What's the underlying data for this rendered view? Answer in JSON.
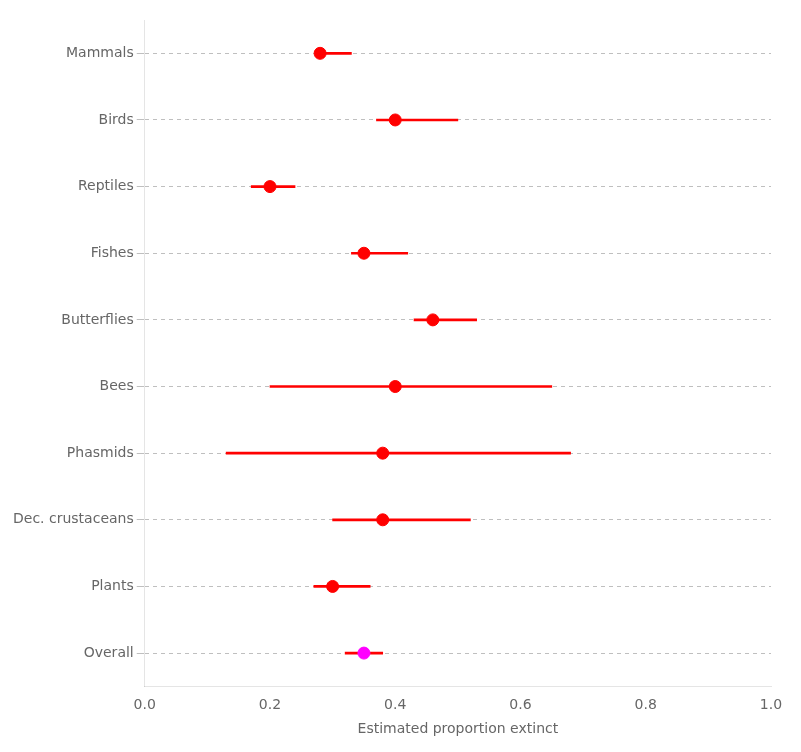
{
  "chart_data": {
    "type": "errorbar",
    "categories": [
      "Mammals",
      "Birds",
      "Reptiles",
      "Fishes",
      "Butterflies",
      "Bees",
      "Phasmids",
      "Dec. crustaceans",
      "Plants",
      "Overall"
    ],
    "values": [
      0.28,
      0.4,
      0.2,
      0.35,
      0.46,
      0.4,
      0.38,
      0.38,
      0.3,
      0.35
    ],
    "lower": [
      0.28,
      0.37,
      0.17,
      0.33,
      0.43,
      0.2,
      0.13,
      0.3,
      0.27,
      0.32
    ],
    "upper": [
      0.33,
      0.5,
      0.24,
      0.42,
      0.53,
      0.65,
      0.68,
      0.52,
      0.36,
      0.38
    ],
    "colors": [
      "#ff0000",
      "#ff0000",
      "#ff0000",
      "#ff0000",
      "#ff0000",
      "#ff0000",
      "#ff0000",
      "#ff0000",
      "#ff0000",
      "#ff00ff"
    ],
    "color": "#ff0000",
    "xlabel": "Estimated proportion extinct",
    "xlim": [
      0.0,
      1.0
    ],
    "xticks": [
      {
        "value": 0.0,
        "label": "0.0"
      },
      0.2,
      0.4,
      0.6,
      0.8,
      {
        "value": 1.0,
        "label": "1.0"
      }
    ],
    "grid": "y"
  }
}
